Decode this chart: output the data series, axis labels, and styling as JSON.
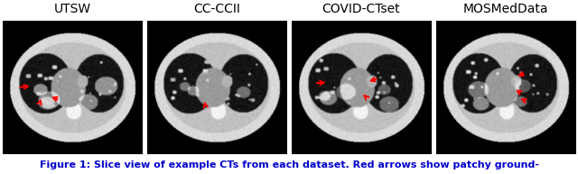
{
  "titles": [
    "UTSW",
    "CC-CCII",
    "COVID-CTset",
    "MOSMedData"
  ],
  "caption": "Figure 1: Slice view of example CTs from each dataset. Red arrows show patchy ground-",
  "caption_color": "#0000cc",
  "background_color": "#ffffff",
  "title_fontsize": 10,
  "caption_fontsize": 8.0,
  "n_panels": 4,
  "fig_width": 6.4,
  "fig_height": 1.93,
  "title_fontstyle": "normal"
}
